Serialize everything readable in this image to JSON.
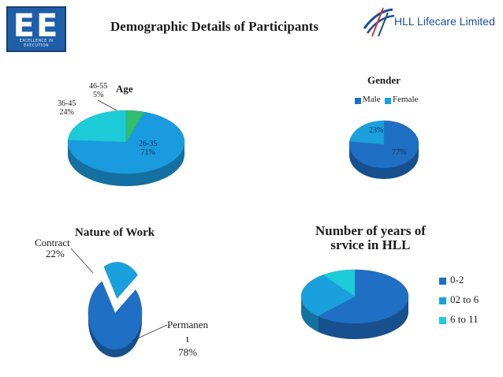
{
  "header": {
    "title": "Demographic Details of Participants",
    "logo_left": {
      "letters": "EE",
      "tagline": "EXCELLENCE IN EXECUTION"
    },
    "logo_right": {
      "text": "HLL Lifecare Limited"
    }
  },
  "colors": {
    "dark_blue": "#1f6fc4",
    "mid_blue": "#1aa0dc",
    "cyan": "#1ecbd9",
    "green": "#2fbf6f"
  },
  "chart_data": [
    {
      "type": "pie",
      "title": "Age",
      "categories": [
        "26-35",
        "36-45",
        "46-55"
      ],
      "values": [
        71,
        24,
        5
      ],
      "data_labels": [
        "71%",
        "24%",
        "5%"
      ]
    },
    {
      "type": "pie",
      "title": "Gender",
      "categories": [
        "Male",
        "Female"
      ],
      "values": [
        77,
        23
      ],
      "data_labels": [
        "77%",
        "23%"
      ],
      "legend": "top"
    },
    {
      "type": "pie",
      "title": "Nature of Work",
      "categories": [
        "Permanent",
        "Contract"
      ],
      "display_labels": [
        "Permanen\nt",
        "Contract"
      ],
      "values": [
        78,
        22
      ],
      "data_labels": [
        "78%",
        "22%"
      ]
    },
    {
      "type": "pie",
      "title": "Number of years of srvice in HLL",
      "title_lines": [
        "Number of years of",
        "srvice in HLL"
      ],
      "categories": [
        "0-2",
        "02 to 6",
        "6 to 11"
      ],
      "values": [
        62,
        28,
        10
      ],
      "legend": "right"
    }
  ]
}
